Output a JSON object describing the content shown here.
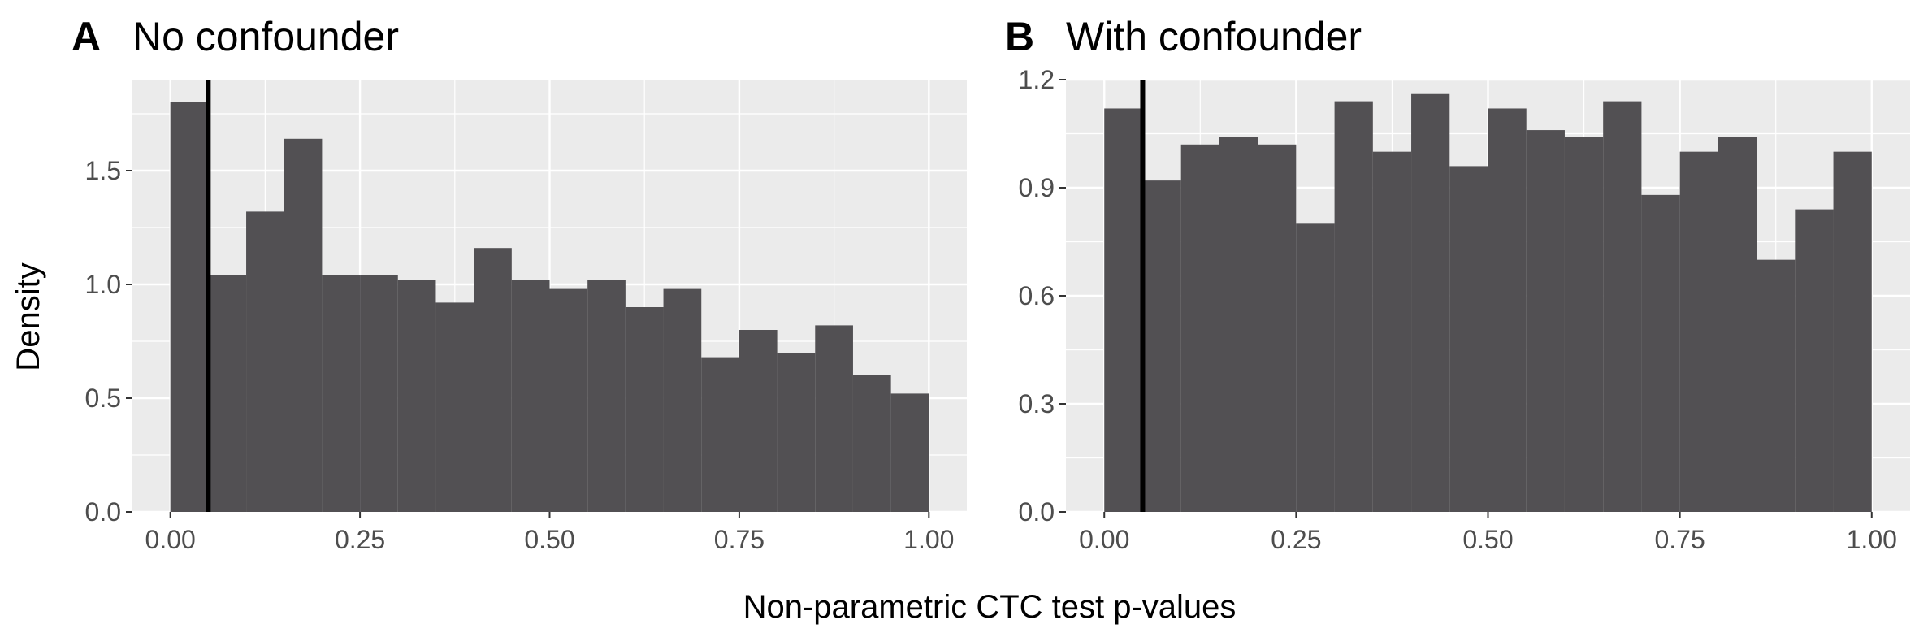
{
  "figure": {
    "ylabel": "Density",
    "xlabel": "Non-parametric CTC test p-values"
  },
  "chart_data": [
    {
      "type": "bar",
      "panel": "A",
      "title": "No confounder",
      "xlabel": "Non-parametric CTC test p-values",
      "ylabel": "Density",
      "xlim": [
        -0.05,
        1.05
      ],
      "ylim": [
        0,
        1.9
      ],
      "xticks": [
        0,
        0.25,
        0.5,
        0.75,
        1.0
      ],
      "xtick_labels": [
        "0.00",
        "0.25",
        "0.50",
        "0.75",
        "1.00"
      ],
      "yticks": [
        0,
        0.5,
        1.0,
        1.5
      ],
      "ytick_labels": [
        "0.0",
        "0.5",
        "1.0",
        "1.5"
      ],
      "bin_width": 0.05,
      "bin_starts": [
        0,
        0.05,
        0.1,
        0.15,
        0.2,
        0.25,
        0.3,
        0.35,
        0.4,
        0.45,
        0.5,
        0.55,
        0.6,
        0.65,
        0.7,
        0.75,
        0.8,
        0.85,
        0.9,
        0.95
      ],
      "values": [
        1.8,
        1.04,
        1.32,
        1.64,
        1.04,
        1.04,
        1.02,
        0.92,
        1.16,
        1.02,
        0.98,
        1.02,
        0.9,
        0.98,
        0.68,
        0.8,
        0.7,
        0.82,
        0.6,
        0.52
      ],
      "vline": 0.05,
      "bar_color": "#525053",
      "grid": true
    },
    {
      "type": "bar",
      "panel": "B",
      "title": "With confounder",
      "xlabel": "Non-parametric CTC test p-values",
      "ylabel": "Density",
      "xlim": [
        -0.05,
        1.05
      ],
      "ylim": [
        0,
        1.2
      ],
      "xticks": [
        0,
        0.25,
        0.5,
        0.75,
        1.0
      ],
      "xtick_labels": [
        "0.00",
        "0.25",
        "0.50",
        "0.75",
        "1.00"
      ],
      "yticks": [
        0,
        0.3,
        0.6,
        0.9,
        1.2
      ],
      "ytick_labels": [
        "0.0",
        "0.3",
        "0.6",
        "0.9",
        "1.2"
      ],
      "bin_width": 0.05,
      "bin_starts": [
        0,
        0.05,
        0.1,
        0.15,
        0.2,
        0.25,
        0.3,
        0.35,
        0.4,
        0.45,
        0.5,
        0.55,
        0.6,
        0.65,
        0.7,
        0.75,
        0.8,
        0.85,
        0.9,
        0.95
      ],
      "values": [
        1.12,
        0.92,
        1.02,
        1.04,
        1.02,
        0.8,
        1.14,
        1.0,
        1.16,
        0.96,
        1.12,
        1.06,
        1.04,
        1.14,
        0.88,
        1.0,
        1.04,
        0.7,
        0.84,
        1.0
      ],
      "vline": 0.05,
      "bar_color": "#525053",
      "grid": true
    }
  ]
}
